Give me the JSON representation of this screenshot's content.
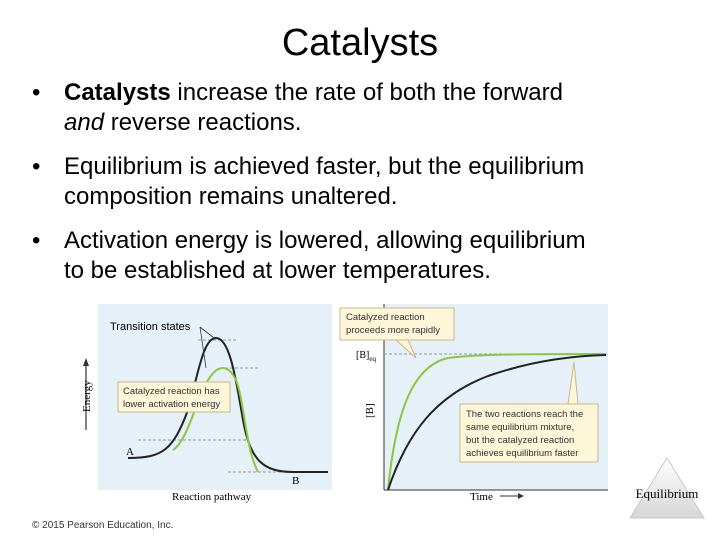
{
  "slide": {
    "title": "Catalysts",
    "bullets": [
      {
        "strong": "Catalysts",
        "rest1": " increase the rate of both the forward",
        "em": "and",
        "rest2": " reverse reactions."
      },
      {
        "line1": "Equilibrium is achieved faster, but the equilibrium",
        "line2": "composition remains unaltered."
      },
      {
        "line1": "Activation energy is lowered, allowing equilibrium",
        "line2": "to be established at lower temperatures."
      }
    ],
    "copyright": "© 2015 Pearson Education, Inc.",
    "nav_button_label": "Equilibrium"
  },
  "figure": {
    "left_panel": {
      "transition_label": "Transition states",
      "callout": [
        "Catalyzed reaction has",
        "lower activation energy"
      ],
      "ylabel": "Energy",
      "xlabel": "Reaction pathway",
      "state_a": "A",
      "state_b": "B"
    },
    "right_panel": {
      "callout_top": [
        "Catalyzed reaction",
        "proceeds more rapidly"
      ],
      "eq_label": "[B]",
      "eq_sub": "eq",
      "ylabel": "[B]",
      "xlabel": "Time",
      "callout_bottom": [
        "The two reactions reach the",
        "same equilibrium mixture,",
        "but the catalyzed reaction",
        "achieves equilibrium faster"
      ]
    },
    "colors": {
      "uncatalyzed": "#222222",
      "catalyzed": "#8cc63f",
      "panel_bg": "#e6f0f8",
      "callout_bg": "#fdf6d8",
      "callout_border": "#c8b88a"
    }
  }
}
